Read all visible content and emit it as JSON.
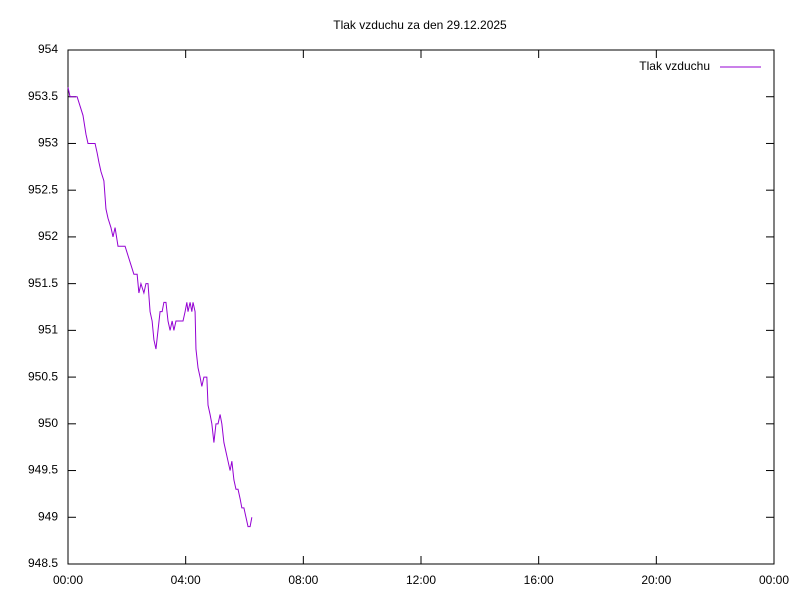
{
  "chart_data": {
    "type": "line",
    "title": "Tlak vzduchu za den 29.12.2025",
    "x": [
      0,
      0.07,
      0.31,
      0.41,
      0.51,
      0.61,
      0.68,
      0.92,
      0.99,
      1.05,
      1.12,
      1.22,
      1.29,
      1.36,
      1.46,
      1.53,
      1.6,
      1.7,
      1.94,
      2.04,
      2.14,
      2.24,
      2.35,
      2.41,
      2.48,
      2.58,
      2.65,
      2.72,
      2.79,
      2.86,
      2.92,
      2.99,
      3.06,
      3.13,
      3.2,
      3.26,
      3.33,
      3.4,
      3.47,
      3.54,
      3.6,
      3.67,
      3.81,
      3.91,
      3.98,
      4.04,
      4.08,
      4.15,
      4.21,
      4.25,
      4.32,
      4.35,
      4.42,
      4.49,
      4.55,
      4.62,
      4.72,
      4.76,
      4.83,
      4.89,
      4.96,
      5.03,
      5.1,
      5.17,
      5.23,
      5.3,
      5.37,
      5.44,
      5.51,
      5.57,
      5.64,
      5.71,
      5.78,
      5.85,
      5.91,
      5.98,
      6.05,
      6.12,
      6.19,
      6.25
    ],
    "series": [
      {
        "name": "Tlak vzduchu",
        "color": "#9400d3",
        "values": [
          953.6,
          953.5,
          953.5,
          953.4,
          953.3,
          953.1,
          953.0,
          953.0,
          952.9,
          952.8,
          952.7,
          952.6,
          952.3,
          952.2,
          952.1,
          952.0,
          952.1,
          951.9,
          951.9,
          951.8,
          951.7,
          951.6,
          951.6,
          951.4,
          951.5,
          951.4,
          951.5,
          951.5,
          951.2,
          951.1,
          950.9,
          950.8,
          951.0,
          951.2,
          951.2,
          951.3,
          951.3,
          951.1,
          951.0,
          951.1,
          951.0,
          951.1,
          951.1,
          951.1,
          951.2,
          951.3,
          951.2,
          951.3,
          951.2,
          951.3,
          951.2,
          950.8,
          950.6,
          950.5,
          950.4,
          950.5,
          950.5,
          950.2,
          950.1,
          950.0,
          949.8,
          950.0,
          950.0,
          950.1,
          950.0,
          949.8,
          949.7,
          949.6,
          949.5,
          949.6,
          949.4,
          949.3,
          949.3,
          949.2,
          949.1,
          949.1,
          949.0,
          948.9,
          948.9,
          949.0
        ]
      }
    ],
    "xlim": [
      0,
      24
    ],
    "xticks": [
      {
        "value": 0,
        "label": "00:00"
      },
      {
        "value": 4,
        "label": "04:00"
      },
      {
        "value": 8,
        "label": "08:00"
      },
      {
        "value": 12,
        "label": "12:00"
      },
      {
        "value": 16,
        "label": "16:00"
      },
      {
        "value": 20,
        "label": "20:00"
      },
      {
        "value": 24,
        "label": "00:00"
      }
    ],
    "ylim": [
      948.5,
      954
    ],
    "yticks": [
      948.5,
      949,
      949.5,
      950,
      950.5,
      951,
      951.5,
      952,
      952.5,
      953,
      953.5,
      954
    ],
    "legend": "top-right"
  }
}
